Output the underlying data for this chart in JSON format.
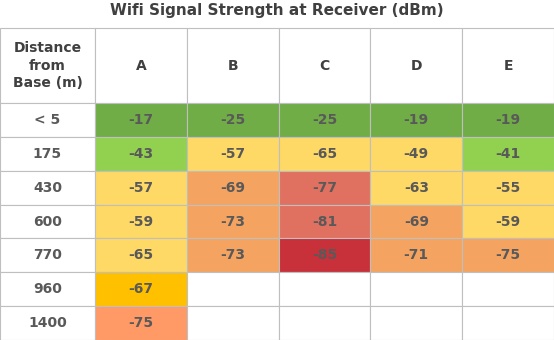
{
  "title": "Wifi Signal Strength at Receiver (dBm)",
  "col_header": [
    "Distance\nfrom\nBase (m)",
    "A",
    "B",
    "C",
    "D",
    "E"
  ],
  "rows": [
    {
      "label": "< 5",
      "values": [
        -17,
        -25,
        -25,
        -19,
        -19
      ]
    },
    {
      "label": "175",
      "values": [
        -43,
        -57,
        -65,
        -49,
        -41
      ]
    },
    {
      "label": "430",
      "values": [
        -57,
        -69,
        -77,
        -63,
        -55
      ]
    },
    {
      "label": "600",
      "values": [
        -59,
        -73,
        -81,
        -69,
        -59
      ]
    },
    {
      "label": "770",
      "values": [
        -65,
        -73,
        -85,
        -71,
        -75
      ]
    },
    {
      "label": "960",
      "values": [
        -67,
        null,
        null,
        null,
        null
      ]
    },
    {
      "label": "1400",
      "values": [
        -75,
        null,
        null,
        null,
        null
      ]
    }
  ],
  "cell_colors": [
    [
      "#70ad47",
      "#70ad47",
      "#70ad47",
      "#70ad47",
      "#70ad47"
    ],
    [
      "#92d050",
      "#ffd966",
      "#ffd966",
      "#ffd966",
      "#92d050"
    ],
    [
      "#ffd966",
      "#f4a460",
      "#e07060",
      "#ffd966",
      "#ffd966"
    ],
    [
      "#ffd966",
      "#f4a460",
      "#e07060",
      "#f4a460",
      "#ffd966"
    ],
    [
      "#ffd966",
      "#f4a460",
      "#c8303a",
      "#f4a460",
      "#f4a460"
    ],
    [
      "#ffc000",
      null,
      null,
      null,
      null
    ],
    [
      "#ff9966",
      null,
      null,
      null,
      null
    ]
  ],
  "text_color": "#595959",
  "header_text_color": "#404040",
  "title_color": "#404040",
  "bg_color": "#ffffff",
  "grid_color": "#bfbfbf",
  "title_fontsize": 11,
  "header_fontsize": 10,
  "cell_fontsize": 10
}
